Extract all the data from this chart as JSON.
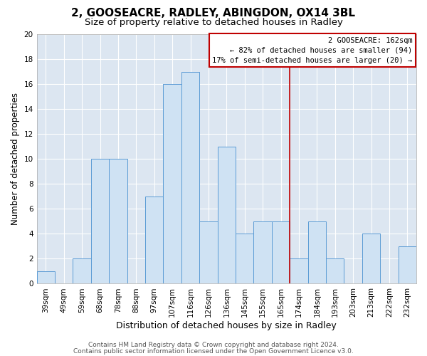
{
  "title": "2, GOOSEACRE, RADLEY, ABINGDON, OX14 3BL",
  "subtitle": "Size of property relative to detached houses in Radley",
  "xlabel": "Distribution of detached houses by size in Radley",
  "ylabel": "Number of detached properties",
  "bar_labels": [
    "39sqm",
    "49sqm",
    "59sqm",
    "68sqm",
    "78sqm",
    "88sqm",
    "97sqm",
    "107sqm",
    "116sqm",
    "126sqm",
    "136sqm",
    "145sqm",
    "155sqm",
    "165sqm",
    "174sqm",
    "184sqm",
    "193sqm",
    "203sqm",
    "213sqm",
    "222sqm",
    "232sqm"
  ],
  "bar_values": [
    1,
    0,
    2,
    10,
    10,
    0,
    7,
    16,
    17,
    5,
    11,
    4,
    5,
    5,
    2,
    5,
    2,
    0,
    4,
    0,
    3
  ],
  "bar_color": "#cfe2f3",
  "bar_edge_color": "#5b9bd5",
  "bg_color": "#dce6f1",
  "ylim": [
    0,
    20
  ],
  "yticks": [
    0,
    2,
    4,
    6,
    8,
    10,
    12,
    14,
    16,
    18,
    20
  ],
  "vline_color": "#c00000",
  "annotation_title": "2 GOOSEACRE: 162sqm",
  "annotation_line1": "← 82% of detached houses are smaller (94)",
  "annotation_line2": "17% of semi-detached houses are larger (20) →",
  "annotation_box_color": "#ffffff",
  "annotation_box_edge": "#c00000",
  "footer1": "Contains HM Land Registry data © Crown copyright and database right 2024.",
  "footer2": "Contains public sector information licensed under the Open Government Licence v3.0.",
  "title_fontsize": 11,
  "subtitle_fontsize": 9.5,
  "xlabel_fontsize": 9,
  "ylabel_fontsize": 8.5,
  "tick_fontsize": 7.5,
  "footer_fontsize": 6.5,
  "grid_color": "#ffffff"
}
